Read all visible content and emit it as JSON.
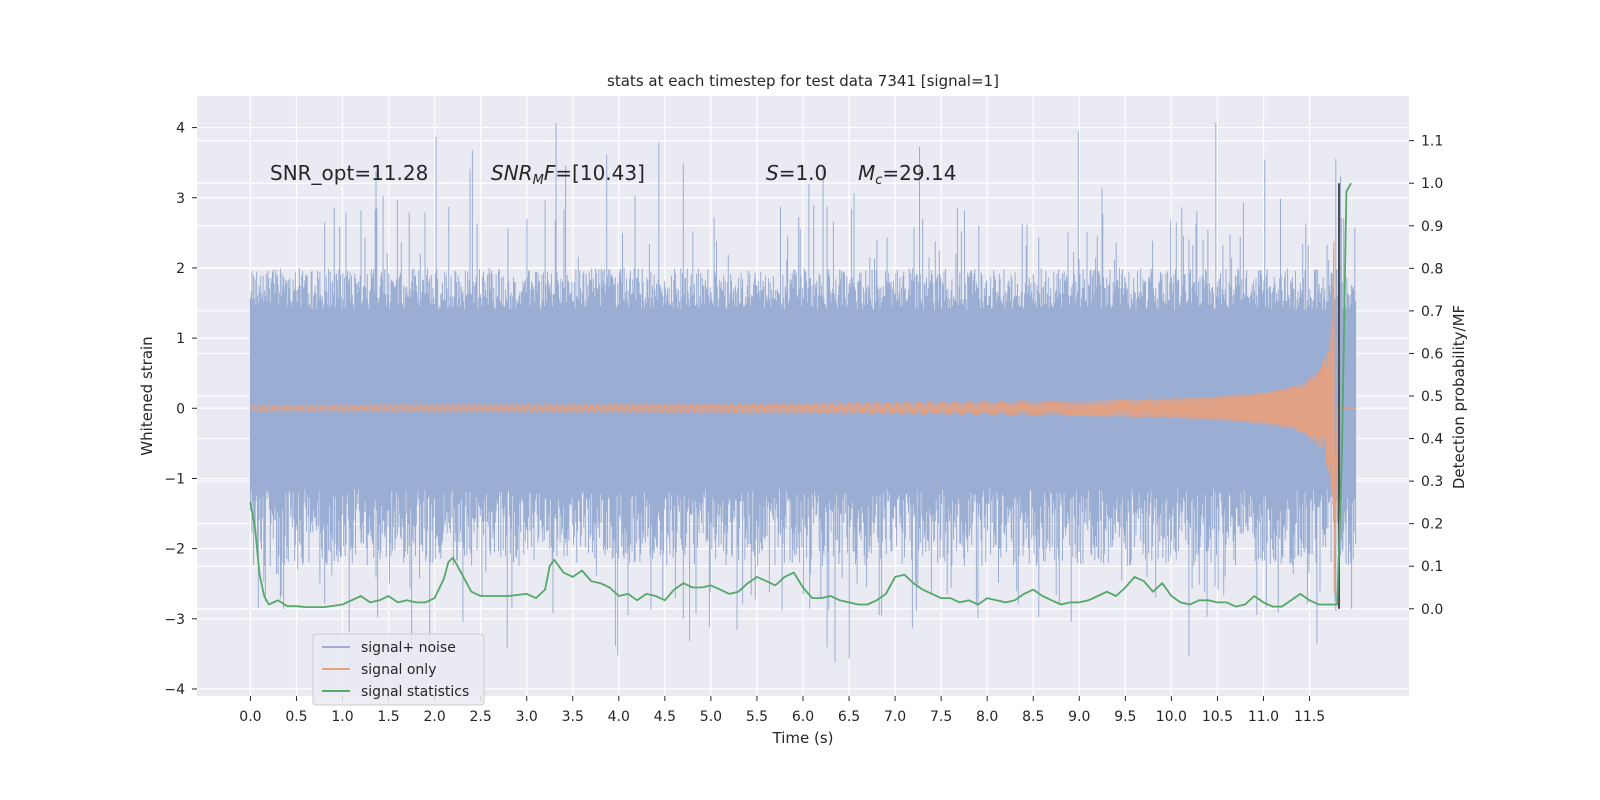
{
  "chart_data": {
    "type": "line",
    "title": "stats at each timestep for test data 7341 [signal=1]",
    "xlabel": "Time (s)",
    "ylabel_left": "Whitened strain",
    "ylabel_right": "Detection probability/MF",
    "xlim": [
      -0.58,
      12.58
    ],
    "ylim_left": [
      -4.1,
      4.45
    ],
    "ylim_right": [
      -0.205,
      1.205
    ],
    "x_ticks": [
      "0.0",
      "0.5",
      "1.0",
      "1.5",
      "2.0",
      "2.5",
      "3.0",
      "3.5",
      "4.0",
      "4.5",
      "5.0",
      "5.5",
      "6.0",
      "6.5",
      "7.0",
      "7.5",
      "8.0",
      "8.5",
      "9.0",
      "9.5",
      "10.0",
      "10.5",
      "11.0",
      "11.5"
    ],
    "y_ticks_left": [
      "−4",
      "−3",
      "−2",
      "−1",
      "0",
      "1",
      "2",
      "3",
      "4"
    ],
    "y_ticks_right": [
      "0.0",
      "0.1",
      "0.2",
      "0.3",
      "0.4",
      "0.5",
      "0.6",
      "0.7",
      "0.8",
      "0.9",
      "1.0",
      "1.1"
    ],
    "annotations": {
      "snr_opt": "SNR_opt=11.28",
      "snr_mf_label": "SNR",
      "snr_mf_sub": "M",
      "snr_mf_rest": "F=[10.43]",
      "s_label": "S",
      "s_rest": "=1.0",
      "mc_label": "M",
      "mc_sub": "c",
      "mc_rest": "=29.14"
    },
    "legend": {
      "placement": "lower-left",
      "entries": [
        "signal+ noise",
        "signal only",
        "signal statistics"
      ]
    },
    "colors": {
      "noise": "#9aadd3",
      "signal": "#e0a185",
      "statistics": "#55a868",
      "marker": "#4c4c4c",
      "plot_bg": "#eaeaf2",
      "grid": "#ffffff"
    },
    "series": [
      {
        "name": "signal+ noise",
        "axis": "left",
        "envelope": {
          "t_start": 0.0,
          "t_end": 12.0,
          "typical_max": 2.0,
          "typical_min": -1.7,
          "spike_max": 4.1,
          "spike_min": -3.7
        }
      },
      {
        "name": "signal only",
        "axis": "left",
        "chirp": {
          "t_start": 0.0,
          "t_merger": 11.78,
          "peak_amplitude": 2.65,
          "amplitude_at_10s": 0.14
        }
      },
      {
        "name": "signal statistics",
        "axis": "right",
        "x": [
          0.0,
          0.05,
          0.1,
          0.15,
          0.2,
          0.3,
          0.4,
          0.5,
          0.6,
          0.8,
          1.0,
          1.2,
          1.3,
          1.4,
          1.5,
          1.6,
          1.7,
          1.8,
          1.9,
          2.0,
          2.1,
          2.15,
          2.2,
          2.3,
          2.4,
          2.45,
          2.5,
          2.6,
          2.8,
          3.0,
          3.1,
          3.2,
          3.25,
          3.3,
          3.4,
          3.5,
          3.6,
          3.7,
          3.8,
          3.9,
          4.0,
          4.1,
          4.2,
          4.3,
          4.4,
          4.5,
          4.6,
          4.7,
          4.8,
          4.9,
          5.0,
          5.1,
          5.2,
          5.3,
          5.4,
          5.5,
          5.6,
          5.7,
          5.8,
          5.9,
          6.0,
          6.1,
          6.2,
          6.3,
          6.4,
          6.5,
          6.6,
          6.7,
          6.8,
          6.9,
          7.0,
          7.1,
          7.2,
          7.3,
          7.4,
          7.5,
          7.6,
          7.7,
          7.8,
          7.9,
          8.0,
          8.1,
          8.2,
          8.3,
          8.4,
          8.5,
          8.6,
          8.7,
          8.8,
          8.9,
          9.0,
          9.1,
          9.2,
          9.3,
          9.4,
          9.5,
          9.6,
          9.7,
          9.8,
          9.9,
          10.0,
          10.1,
          10.2,
          10.3,
          10.4,
          10.5,
          10.6,
          10.7,
          10.8,
          10.9,
          11.0,
          11.1,
          11.2,
          11.3,
          11.4,
          11.5,
          11.6,
          11.7,
          11.75,
          11.8,
          11.85,
          11.9,
          11.95
        ],
        "values": [
          0.25,
          0.19,
          0.08,
          0.03,
          0.01,
          0.02,
          0.006,
          0.006,
          0.004,
          0.004,
          0.01,
          0.03,
          0.015,
          0.02,
          0.03,
          0.015,
          0.02,
          0.015,
          0.015,
          0.025,
          0.07,
          0.11,
          0.12,
          0.08,
          0.04,
          0.035,
          0.03,
          0.03,
          0.03,
          0.035,
          0.025,
          0.045,
          0.1,
          0.115,
          0.085,
          0.075,
          0.09,
          0.065,
          0.06,
          0.05,
          0.03,
          0.035,
          0.02,
          0.035,
          0.03,
          0.02,
          0.045,
          0.06,
          0.05,
          0.05,
          0.055,
          0.045,
          0.035,
          0.04,
          0.06,
          0.075,
          0.065,
          0.055,
          0.075,
          0.085,
          0.05,
          0.025,
          0.025,
          0.03,
          0.02,
          0.015,
          0.01,
          0.01,
          0.02,
          0.035,
          0.075,
          0.08,
          0.06,
          0.045,
          0.035,
          0.025,
          0.025,
          0.015,
          0.02,
          0.01,
          0.025,
          0.02,
          0.015,
          0.02,
          0.035,
          0.045,
          0.03,
          0.02,
          0.01,
          0.015,
          0.015,
          0.02,
          0.03,
          0.04,
          0.03,
          0.05,
          0.075,
          0.065,
          0.04,
          0.06,
          0.03,
          0.015,
          0.01,
          0.02,
          0.02,
          0.015,
          0.015,
          0.005,
          0.01,
          0.03,
          0.015,
          0.005,
          0.005,
          0.02,
          0.035,
          0.02,
          0.01,
          0.01,
          0.01,
          0.01,
          0.35,
          0.98,
          1.0
        ]
      }
    ],
    "vertical_line": {
      "x": 11.82,
      "y_right_range": [
        0.0,
        1.0
      ]
    }
  }
}
